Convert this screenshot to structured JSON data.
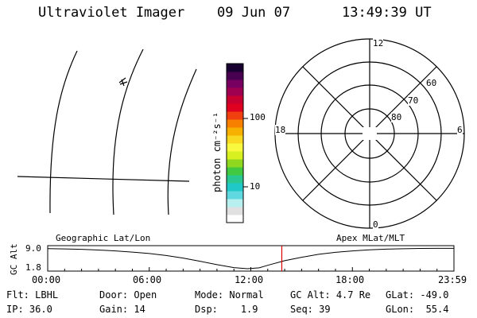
{
  "header": {
    "instrument": "Ultraviolet Imager",
    "date": "09 Jun 07",
    "time": "13:49:39 UT"
  },
  "colorbar": {
    "unit_label": "photon cm⁻²s⁻¹",
    "ticks": [
      "100",
      "10"
    ],
    "colors": [
      "#ffffff",
      "#e0e0e0",
      "#b8f0f0",
      "#60d8e0",
      "#20c8c8",
      "#28c890",
      "#40c840",
      "#90d820",
      "#d8f020",
      "#f8f840",
      "#f8d820",
      "#f8b000",
      "#f88000",
      "#f04010",
      "#e00020",
      "#c80030",
      "#a00050",
      "#780060",
      "#480050",
      "#180030"
    ]
  },
  "geo_panel": {
    "label": "Geographic Lat/Lon"
  },
  "polar_plot": {
    "label": "Apex MLat/MLT",
    "mlt_labels": [
      "12",
      "18",
      "6",
      "0"
    ],
    "lat_labels": [
      "60",
      "70",
      "80"
    ]
  },
  "chart_data": {
    "type": "line",
    "title": "",
    "ylabel": "GC Alt",
    "yticks": [
      "9.0",
      "1.8"
    ],
    "ylim": [
      1.8,
      9.0
    ],
    "xticks": [
      "00:00",
      "06:00",
      "12:00",
      "18:00",
      "23:59"
    ],
    "x": [
      0,
      1,
      2,
      3,
      4,
      5,
      6,
      7,
      8,
      9,
      10,
      11,
      11.8,
      12.5,
      13,
      14,
      15,
      16,
      17,
      18,
      19,
      20,
      21,
      22,
      23,
      24
    ],
    "y": [
      8.8,
      8.7,
      8.55,
      8.3,
      8.0,
      7.6,
      7.1,
      6.4,
      5.5,
      4.4,
      3.2,
      2.2,
      1.8,
      2.1,
      3.0,
      4.6,
      5.8,
      6.8,
      7.5,
      8.0,
      8.4,
      8.6,
      8.75,
      8.85,
      8.9,
      8.9
    ],
    "current_time_marker": 13.83,
    "marker_color": "#e00000"
  },
  "status": {
    "flt_label": "Flt:",
    "flt_value": "LBHL",
    "ip_label": "IP:",
    "ip_value": "36.0",
    "door_label": "Door:",
    "door_value": "Open",
    "gain_label": "Gain:",
    "gain_value": "14",
    "mode_label": "Mode:",
    "mode_value": "Normal",
    "dsp_label": "Dsp:",
    "dsp_value": "1.9",
    "gcalt_label": "GC Alt:",
    "gcalt_value": "4.7 Re",
    "seq_label": "Seq:",
    "seq_value": "39",
    "glat_label": "GLat:",
    "glat_value": "-49.0",
    "glon_label": "GLon:",
    "glon_value": "55.4"
  }
}
